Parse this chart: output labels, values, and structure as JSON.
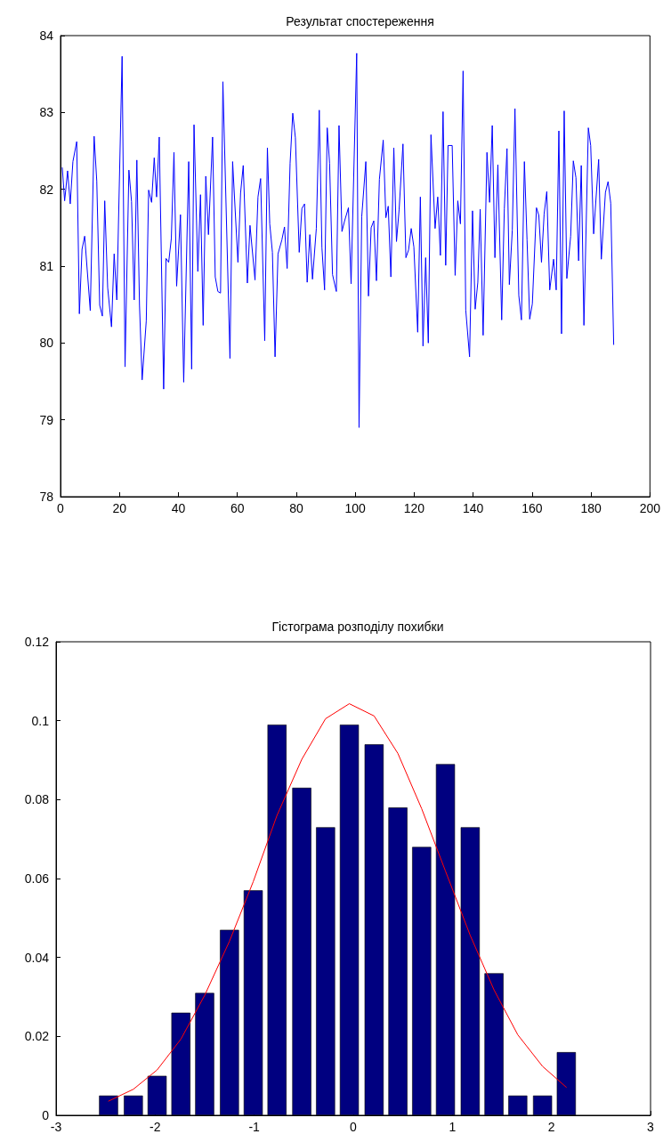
{
  "chart_data": [
    {
      "type": "line",
      "title": "Результат спостереження",
      "color": "#0000ff",
      "marker": "none",
      "grid": false,
      "x": [
        0.6,
        1.4,
        1.8,
        2.4,
        3.3,
        4.2,
        5.5,
        6.4,
        7.3,
        8.2,
        10.1,
        11.4,
        12.3,
        13.3,
        14.2,
        15.0,
        16.0,
        17.3,
        18.2,
        19.1,
        20.9,
        21.9,
        23.2,
        24.1,
        25.0,
        25.9,
        26.8,
        27.7,
        29.1,
        29.9,
        30.9,
        31.8,
        32.6,
        33.5,
        35.0,
        35.8,
        36.7,
        37.6,
        38.5,
        39.4,
        40.7,
        41.8,
        43.5,
        44.5,
        45.3,
        46.6,
        47.5,
        48.4,
        49.3,
        50.2,
        51.6,
        52.5,
        53.4,
        54.3,
        55.1,
        57.5,
        58.4,
        60.2,
        61.1,
        62.0,
        63.4,
        64.3,
        66.0,
        67.0,
        67.9,
        69.3,
        70.2,
        71.0,
        71.9,
        72.8,
        73.8,
        75.1,
        76.0,
        76.9,
        77.9,
        78.8,
        79.7,
        81.0,
        81.9,
        82.8,
        83.7,
        84.6,
        85.5,
        86.8,
        87.8,
        88.7,
        89.6,
        90.5,
        91.3,
        92.3,
        93.6,
        94.5,
        95.5,
        96.4,
        97.7,
        98.6,
        100.5,
        101.3,
        102.2,
        103.6,
        104.5,
        105.4,
        106.3,
        107.2,
        108.2,
        109.5,
        110.4,
        111.2,
        112.1,
        113.1,
        114.0,
        114.9,
        116.2,
        117.2,
        118.1,
        119.0,
        119.9,
        121.2,
        122.1,
        123.0,
        123.9,
        124.8,
        125.7,
        127.1,
        128.0,
        128.9,
        129.8,
        130.7,
        131.5,
        132.9,
        133.9,
        134.8,
        135.7,
        136.6,
        137.5,
        138.8,
        139.8,
        140.7,
        141.6,
        142.4,
        143.4,
        144.7,
        145.6,
        146.5,
        147.4,
        148.4,
        149.7,
        150.6,
        151.5,
        152.3,
        153.3,
        154.2,
        155.5,
        156.4,
        157.4,
        158.3,
        159.2,
        160.1,
        161.5,
        162.3,
        163.2,
        164.1,
        165.0,
        166.0,
        167.3,
        168.2,
        169.1,
        170.0,
        170.9,
        171.8,
        173.1,
        174.0,
        174.9,
        175.8,
        176.7,
        177.6,
        179.1,
        179.9,
        180.9,
        182.6,
        183.5,
        184.9,
        185.8,
        186.7,
        187.7
      ],
      "values": [
        82.28,
        81.85,
        82.0,
        82.24,
        81.81,
        82.36,
        82.62,
        80.38,
        81.22,
        81.39,
        80.42,
        82.69,
        82.11,
        80.49,
        80.35,
        81.85,
        80.72,
        80.21,
        81.16,
        80.56,
        83.73,
        79.69,
        82.25,
        81.84,
        80.56,
        82.38,
        80.49,
        79.52,
        80.29,
        81.99,
        81.83,
        82.41,
        81.9,
        82.68,
        79.4,
        81.1,
        81.05,
        81.36,
        82.48,
        80.74,
        81.67,
        79.49,
        82.36,
        79.66,
        82.84,
        80.93,
        81.93,
        80.23,
        82.17,
        81.41,
        82.68,
        80.86,
        80.67,
        80.65,
        83.4,
        79.8,
        82.36,
        81.05,
        81.95,
        82.31,
        80.78,
        81.53,
        80.82,
        81.9,
        82.14,
        80.03,
        82.54,
        81.55,
        81.18,
        79.82,
        81.16,
        81.34,
        81.51,
        80.97,
        82.34,
        82.99,
        82.67,
        81.18,
        81.75,
        81.81,
        80.79,
        81.41,
        80.83,
        81.49,
        83.03,
        81.24,
        80.69,
        82.8,
        82.34,
        80.89,
        80.67,
        82.83,
        81.45,
        81.59,
        81.76,
        80.77,
        83.77,
        78.9,
        81.64,
        82.36,
        80.61,
        81.5,
        81.59,
        80.81,
        82.13,
        82.64,
        81.63,
        81.78,
        80.86,
        82.54,
        81.32,
        81.74,
        82.59,
        81.11,
        81.21,
        81.49,
        81.25,
        80.14,
        81.9,
        79.96,
        81.11,
        80.0,
        82.71,
        81.49,
        81.9,
        81.14,
        83.01,
        81.01,
        82.57,
        82.57,
        80.88,
        81.85,
        81.55,
        83.54,
        80.43,
        79.82,
        81.72,
        80.44,
        80.79,
        81.74,
        80.1,
        82.48,
        81.83,
        82.83,
        81.11,
        82.32,
        80.3,
        81.75,
        82.53,
        80.76,
        81.47,
        83.05,
        80.62,
        80.3,
        82.36,
        81.34,
        80.31,
        80.51,
        81.76,
        81.66,
        81.05,
        81.68,
        81.97,
        80.69,
        81.09,
        80.69,
        82.76,
        80.12,
        83.02,
        80.84,
        81.39,
        82.37,
        82.15,
        81.07,
        82.31,
        80.23,
        82.8,
        82.57,
        81.42,
        82.39,
        81.09,
        81.96,
        82.1,
        81.82,
        79.98
      ],
      "xlim": [
        0,
        200
      ],
      "xticks": [
        0,
        20,
        40,
        60,
        80,
        100,
        120,
        140,
        160,
        180,
        200
      ],
      "ylim": [
        78,
        84
      ],
      "yticks": [
        78,
        79,
        80,
        81,
        82,
        83,
        84
      ]
    },
    {
      "type": "bar",
      "title": "Гістограма розподілу похибки",
      "grid": false,
      "marker": "none",
      "series": [
        {
          "color": "#000080",
          "x": [
            -2.47,
            -2.22,
            -1.98,
            -1.74,
            -1.5,
            -1.25,
            -1.01,
            -0.77,
            -0.52,
            -0.28,
            -0.04,
            0.21,
            0.45,
            0.69,
            0.93,
            1.18,
            1.42,
            1.66,
            1.91,
            2.15
          ],
          "values": [
            0.005,
            0.005,
            0.01,
            0.026,
            0.031,
            0.047,
            0.057,
            0.099,
            0.083,
            0.073,
            0.099,
            0.094,
            0.078,
            0.068,
            0.089,
            0.073,
            0.036,
            0.005,
            0.005,
            0.016
          ]
        },
        {
          "type": "line",
          "color": "#ff0000",
          "x": [
            -2.47,
            -2.22,
            -1.98,
            -1.74,
            -1.5,
            -1.25,
            -1.01,
            -0.77,
            -0.52,
            -0.28,
            -0.04,
            0.21,
            0.45,
            0.69,
            0.93,
            1.18,
            1.42,
            1.66,
            1.91,
            2.15
          ],
          "values": [
            0.0036,
            0.0066,
            0.0115,
            0.0193,
            0.0304,
            0.0441,
            0.0592,
            0.076,
            0.0902,
            0.1005,
            0.1043,
            0.1012,
            0.0917,
            0.0777,
            0.0619,
            0.0456,
            0.0318,
            0.0204,
            0.0124,
            0.0071
          ]
        }
      ],
      "xlim": [
        -3,
        3
      ],
      "xticks": [
        -3,
        -2,
        -1,
        0,
        1,
        2,
        3
      ],
      "ylim": [
        0,
        0.12
      ],
      "yticks": [
        0,
        0.02,
        0.04,
        0.06,
        0.08,
        0.1,
        0.12
      ]
    }
  ]
}
